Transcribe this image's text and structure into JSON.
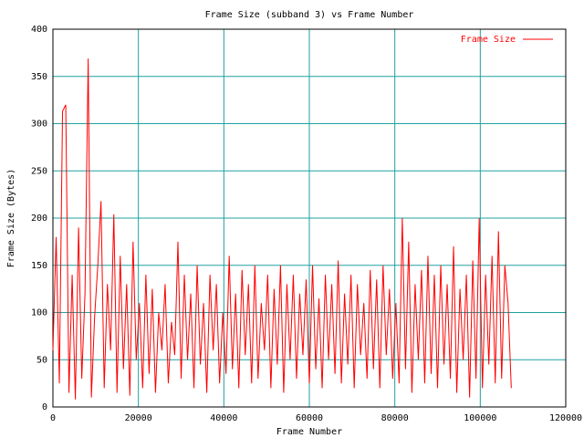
{
  "chart_data": {
    "type": "line",
    "title": "Frame Size (subband 3) vs Frame Number",
    "x_label": "Frame Number",
    "y_label": "Frame Size (Bytes)",
    "xlim": [
      0,
      120000
    ],
    "ylim": [
      0,
      400
    ],
    "xticks": [
      0,
      20000,
      40000,
      60000,
      80000,
      100000,
      120000
    ],
    "yticks": [
      0,
      50,
      100,
      150,
      200,
      250,
      300,
      350,
      400
    ],
    "grid": true,
    "grid_color": "#20a0a0",
    "legend": "upper right",
    "x": [
      0,
      750,
      1500,
      2250,
      3000,
      3750,
      4500,
      5250,
      6000,
      6750,
      7500,
      8250,
      9000,
      9750,
      10500,
      11250,
      12000,
      12750,
      13500,
      14250,
      15000,
      15750,
      16500,
      17250,
      18000,
      18750,
      19500,
      20250,
      21000,
      21750,
      22500,
      23250,
      24000,
      24750,
      25500,
      26250,
      27000,
      27750,
      28500,
      29250,
      30000,
      30750,
      31500,
      32250,
      33000,
      33750,
      34500,
      35250,
      36000,
      36750,
      37500,
      38250,
      39000,
      39750,
      40500,
      41250,
      42000,
      42750,
      43500,
      44250,
      45000,
      45750,
      46500,
      47250,
      48000,
      48750,
      49500,
      50250,
      51000,
      51750,
      52500,
      53250,
      54000,
      54750,
      55500,
      56250,
      57000,
      57750,
      58500,
      59250,
      60000,
      60750,
      61500,
      62250,
      63000,
      63750,
      64500,
      65250,
      66000,
      66750,
      67500,
      68250,
      69000,
      69750,
      70500,
      71250,
      72000,
      72750,
      73500,
      74250,
      75000,
      75750,
      76500,
      77250,
      78000,
      78750,
      79500,
      80250,
      81000,
      81750,
      82500,
      83250,
      84000,
      84750,
      85500,
      86250,
      87000,
      87750,
      88500,
      89250,
      90000,
      90750,
      91500,
      92250,
      93000,
      93750,
      94500,
      95250,
      96000,
      96750,
      97500,
      98250,
      99000,
      99750,
      100500,
      101250,
      102000,
      102750,
      103500,
      104250,
      105000,
      105750,
      106500,
      107250
    ],
    "series": [
      {
        "name": "Frame Size",
        "color": "#ff0000",
        "values": [
          60,
          180,
          25,
          313,
          320,
          15,
          140,
          8,
          190,
          30,
          120,
          369,
          10,
          95,
          150,
          218,
          20,
          130,
          60,
          204,
          15,
          160,
          40,
          130,
          12,
          175,
          50,
          110,
          20,
          140,
          35,
          125,
          15,
          100,
          60,
          130,
          25,
          90,
          55,
          175,
          30,
          140,
          50,
          120,
          20,
          150,
          45,
          110,
          15,
          140,
          60,
          130,
          25,
          100,
          35,
          160,
          40,
          120,
          20,
          145,
          55,
          130,
          25,
          150,
          30,
          110,
          60,
          140,
          20,
          125,
          45,
          150,
          15,
          130,
          50,
          140,
          30,
          120,
          55,
          135,
          25,
          150,
          40,
          115,
          20,
          140,
          50,
          130,
          35,
          155,
          25,
          120,
          45,
          140,
          20,
          130,
          55,
          110,
          30,
          145,
          40,
          135,
          20,
          150,
          55,
          125,
          30,
          110,
          25,
          200,
          40,
          175,
          15,
          130,
          50,
          145,
          25,
          160,
          35,
          140,
          20,
          150,
          45,
          130,
          30,
          170,
          15,
          125,
          50,
          140,
          10,
          155,
          30,
          200,
          20,
          140,
          45,
          160,
          25,
          186,
          30,
          150,
          110,
          20
        ]
      }
    ]
  }
}
